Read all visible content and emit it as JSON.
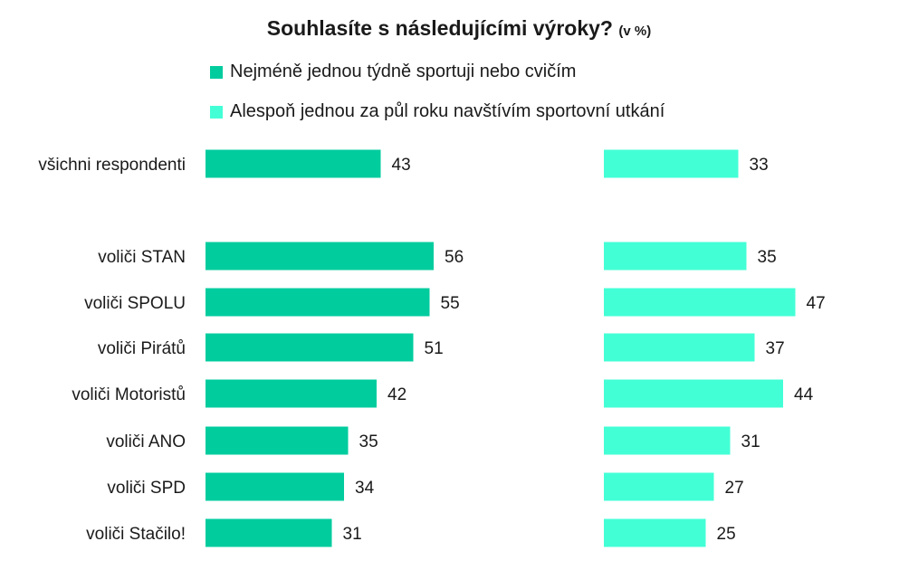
{
  "title": {
    "main": "Souhlasíte s následujícími výroky?",
    "unit": "(v %)"
  },
  "colors": {
    "series1": "#00CC9E",
    "series2": "#43FFD6",
    "text": "#1a1a1a"
  },
  "chart_data": {
    "type": "bar",
    "orientation": "horizontal",
    "categories": [
      "všichni respondenti",
      "voliči STAN",
      "voliči SPOLU",
      "voliči Pirátů",
      "voliči Motoristů",
      "voliči ANO",
      "voliči SPD",
      "voliči Stačilo!"
    ],
    "series": [
      {
        "name": "Nejméně jednou týdně sportuji nebo cvičím",
        "values": [
          43,
          56,
          55,
          51,
          42,
          35,
          34,
          31
        ]
      },
      {
        "name": "Alespoň jednou za půl roku navštívím sportovní utkání",
        "values": [
          33,
          35,
          47,
          37,
          44,
          31,
          27,
          25
        ]
      }
    ],
    "legend": "top",
    "grid": false,
    "data_labels": true
  }
}
